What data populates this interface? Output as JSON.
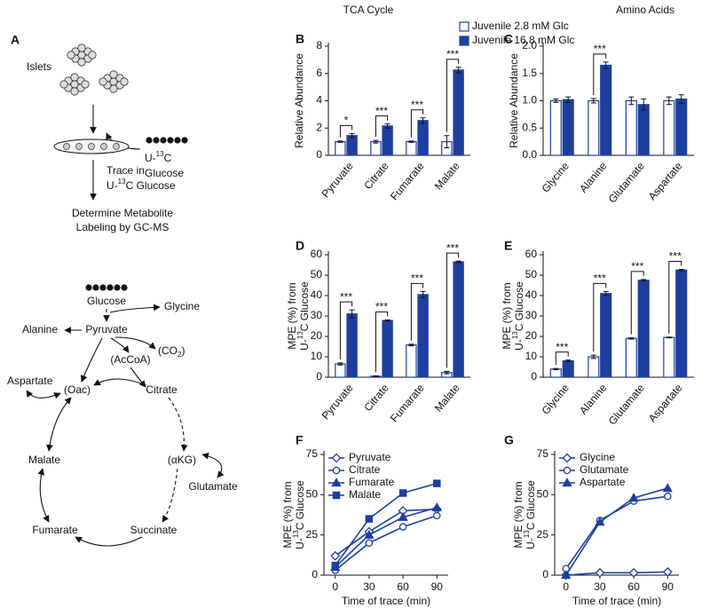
{
  "diagram": {
    "label": "A",
    "islets": "Islets",
    "tracer": {
      "pre": "U-",
      "sup": "13",
      "post": "C",
      "line2": "Glucose"
    },
    "trace": {
      "line1": "Trace in",
      "pre": "U-",
      "sup": "13",
      "post": "C Glucose"
    },
    "determine": [
      "Determine Metabolite",
      "Labeling by GC-MS"
    ],
    "nodes": {
      "glucose": "Glucose",
      "glycine": "Glycine",
      "alanine": "Alanine",
      "pyruvate": "Pyruvate",
      "co2": {
        "pre": "(CO",
        "sub": "2",
        "post": ")"
      },
      "accoa": "(AcCoA)",
      "aspartate": "Aspartate",
      "oac": "(Oac)",
      "citrate": "Citrate",
      "akg": "(αKG)",
      "glutamate": "Glutamate",
      "malate": "Malate",
      "fumarate": "Fumarate",
      "succinate": "Succinate"
    }
  },
  "chart_data": [
    {
      "type": "bar",
      "label": "B",
      "title": "TCA Cycle",
      "ylabel": "Relative Abundance",
      "categories": [
        "Pyruvate",
        "Citrate",
        "Fumarate",
        "Malate"
      ],
      "series": [
        {
          "name": "Juvenile 2.8 mM Glc",
          "color": "#1e3f9e",
          "filled": false,
          "values": [
            1,
            1,
            1,
            1
          ],
          "errors": [
            0.05,
            0.1,
            0.05,
            0.45
          ]
        },
        {
          "name": "Juvenile 16.8 mM Glc",
          "color": "#1e3f9e",
          "filled": true,
          "values": [
            1.45,
            2.15,
            2.55,
            6.25
          ],
          "errors": [
            0.15,
            0.15,
            0.2,
            0.2
          ]
        }
      ],
      "significance": [
        "*",
        "***",
        "***",
        "***"
      ],
      "ylim": [
        0,
        8
      ],
      "yticks": [
        0,
        2,
        4,
        6,
        8
      ]
    },
    {
      "type": "bar",
      "label": "C",
      "title": "Amino Acids",
      "ylabel": "Relative Abundance",
      "categories": [
        "Glycine",
        "Alanine",
        "Glutamate",
        "Aspartate"
      ],
      "series": [
        {
          "color": "#1e3f9e",
          "filled": false,
          "values": [
            1,
            1,
            1,
            1
          ],
          "errors": [
            0.03,
            0.04,
            0.07,
            0.07
          ]
        },
        {
          "color": "#1e3f9e",
          "filled": true,
          "values": [
            1.02,
            1.65,
            0.93,
            1.03
          ],
          "errors": [
            0.05,
            0.06,
            0.1,
            0.08
          ]
        }
      ],
      "significance": [
        null,
        "***",
        null,
        null
      ],
      "ylim": [
        0,
        2
      ],
      "yticks": [
        {
          "value": 0,
          "label": "0.0"
        },
        0.5,
        {
          "value": 1,
          "label": "1.0"
        },
        1.5,
        {
          "value": 2,
          "label": "2.0"
        }
      ]
    },
    {
      "type": "bar",
      "label": "D",
      "ylabel": {
        "line1": "MPE (%) from",
        "pre": "U-",
        "sup": "13",
        "post": "C Glucose"
      },
      "categories": [
        "Pyruvate",
        "Citrate",
        "Fumarate",
        "Malate"
      ],
      "series": [
        {
          "color": "#1e3f9e",
          "filled": false,
          "values": [
            6.5,
            0.5,
            15.8,
            2.3
          ],
          "errors": [
            0.5,
            0.2,
            0.4,
            0.6
          ]
        },
        {
          "color": "#1e3f9e",
          "filled": true,
          "values": [
            31,
            27.8,
            40.5,
            56.5
          ],
          "errors": [
            2,
            0.3,
            1.5,
            0.4
          ]
        }
      ],
      "significance": [
        "***",
        "***",
        "***",
        "***"
      ],
      "ylim": [
        0,
        60
      ],
      "yticks": [
        0,
        10,
        20,
        30,
        40,
        50,
        60
      ]
    },
    {
      "type": "bar",
      "label": "E",
      "ylabel": {
        "line1": "MPE (%) from",
        "pre": "U-",
        "sup": "13",
        "post": "C Glucose"
      },
      "categories": [
        "Glycine",
        "Alanine",
        "Glutamate",
        "Aspartate"
      ],
      "series": [
        {
          "color": "#1e3f9e",
          "filled": false,
          "values": [
            4,
            10,
            19,
            19.5
          ],
          "errors": [
            0.3,
            0.8,
            0.3,
            0.2
          ]
        },
        {
          "color": "#1e3f9e",
          "filled": true,
          "values": [
            8,
            41,
            47.5,
            52.5
          ],
          "errors": [
            0.4,
            1,
            0.4,
            0.3
          ]
        }
      ],
      "significance": [
        "***",
        "***",
        "***",
        "***"
      ],
      "ylim": [
        0,
        60
      ],
      "yticks": [
        0,
        10,
        20,
        30,
        40,
        50,
        60
      ]
    },
    {
      "type": "line",
      "label": "F",
      "ylabel": {
        "line1": "MPE (%) from",
        "pre": "U-",
        "sup": "13",
        "post": "C Glucose"
      },
      "xlabel": "Time of trace (min)",
      "x": [
        0,
        30,
        60,
        90
      ],
      "series": [
        {
          "name": "Pyruvate",
          "color": "#1e3f9e",
          "marker": "diamond",
          "filled": false,
          "values": [
            12,
            27,
            40,
            41
          ]
        },
        {
          "name": "Citrate",
          "color": "#1e3f9e",
          "marker": "circle",
          "filled": false,
          "values": [
            3,
            20,
            30,
            37
          ]
        },
        {
          "name": "Fumarate",
          "color": "#1e3f9e",
          "marker": "triangle",
          "filled": true,
          "values": [
            5,
            25,
            36,
            42
          ]
        },
        {
          "name": "Malate",
          "color": "#1e3f9e",
          "marker": "square",
          "filled": true,
          "values": [
            6,
            35,
            51,
            57
          ]
        }
      ],
      "xlim": [
        -10,
        100
      ],
      "xticks": [
        0,
        30,
        60,
        90
      ],
      "ylim": [
        0,
        75
      ],
      "yticks": [
        0,
        25,
        50,
        75
      ]
    },
    {
      "type": "line",
      "label": "G",
      "ylabel": {
        "line1": "MPE (%) from",
        "pre": "U-",
        "sup": "13",
        "post": "C Glucose"
      },
      "xlabel": "Time of trace (min)",
      "x": [
        0,
        30,
        60,
        90
      ],
      "series": [
        {
          "name": "Glycine",
          "color": "#1e3f9e",
          "marker": "diamond",
          "filled": false,
          "values": [
            0,
            1.5,
            1.5,
            2
          ]
        },
        {
          "name": "Glutamate",
          "color": "#1e3f9e",
          "marker": "circle",
          "filled": false,
          "values": [
            4,
            34,
            46,
            49
          ]
        },
        {
          "name": "Aspartate",
          "color": "#1e3f9e",
          "marker": "triangle",
          "filled": true,
          "values": [
            0,
            33,
            48,
            54
          ]
        }
      ],
      "xlim": [
        -10,
        100
      ],
      "xticks": [
        0,
        30,
        60,
        90
      ],
      "ylim": [
        0,
        75
      ],
      "yticks": [
        0,
        25,
        50,
        75
      ]
    }
  ]
}
